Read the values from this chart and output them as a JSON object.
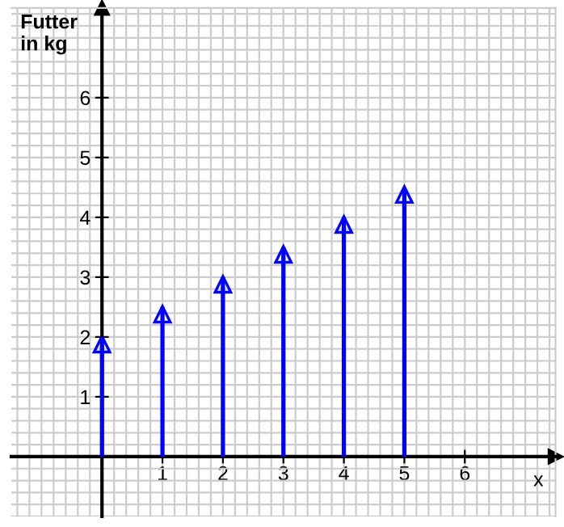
{
  "chart_data": {
    "type": "bar",
    "ylabel": "Futter\nin kg",
    "xlabel": "x",
    "x": [
      0,
      1,
      2,
      3,
      4,
      5
    ],
    "values": [
      2,
      2.5,
      3,
      3.5,
      4,
      4.5
    ],
    "color": "#0000ff",
    "xlim": [
      -1.5,
      7.5
    ],
    "ylim": [
      -1,
      7.5
    ],
    "xticks": [
      1,
      2,
      3,
      4,
      5,
      6
    ],
    "yticks": [
      1,
      2,
      3,
      4,
      5,
      6
    ],
    "grid": true
  }
}
